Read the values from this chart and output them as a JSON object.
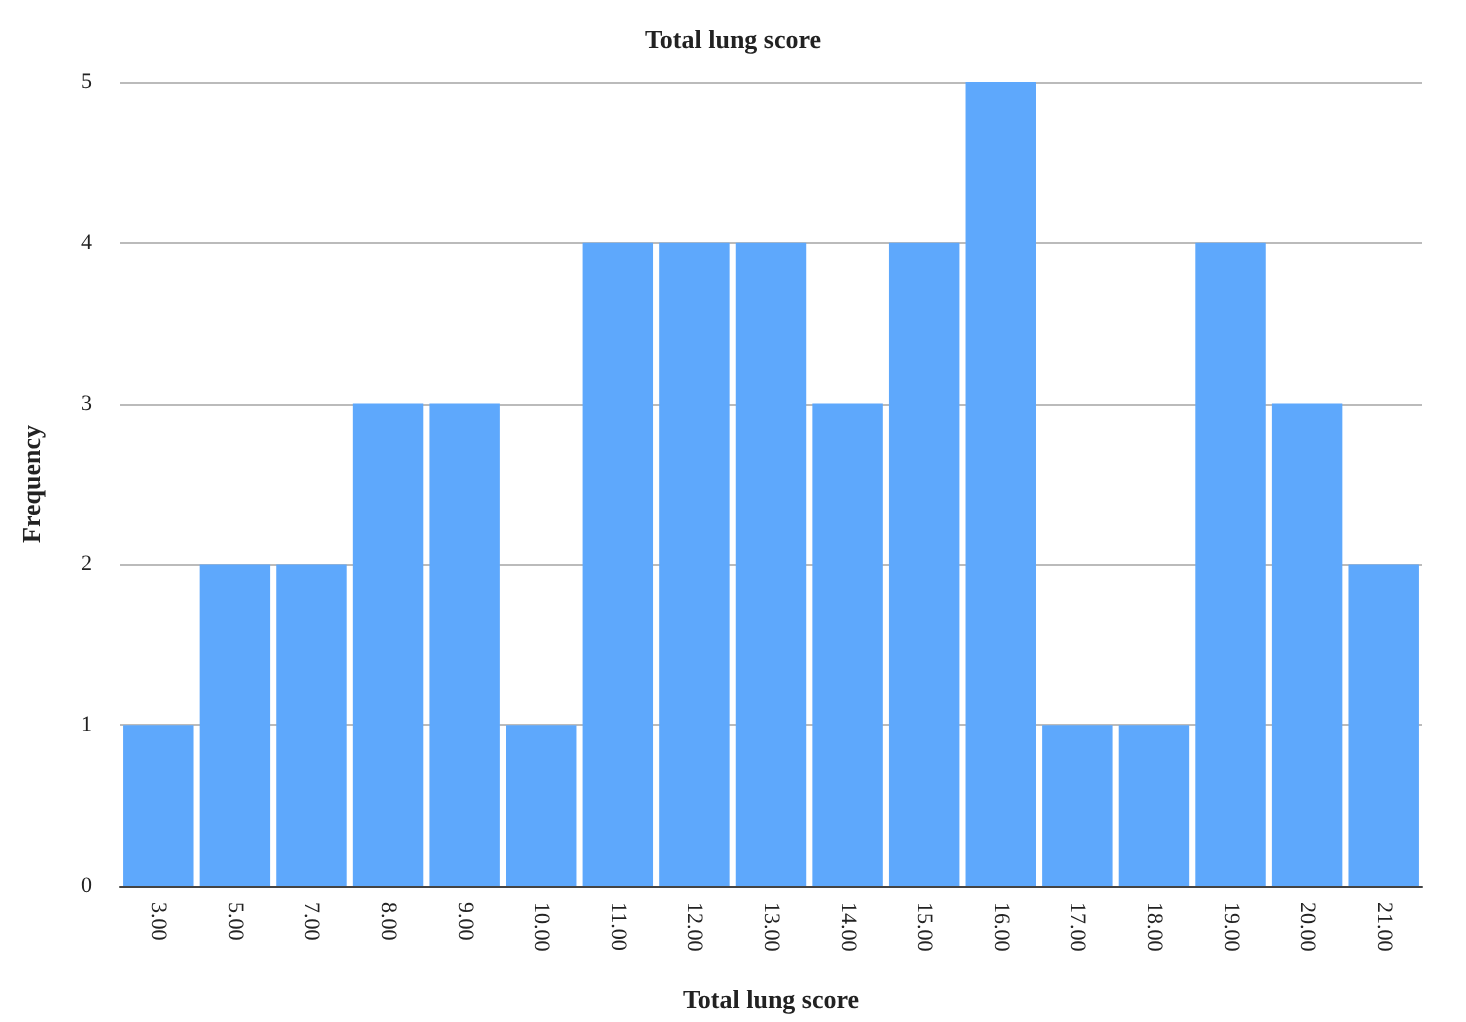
{
  "chart_data": {
    "type": "bar",
    "title": "Total lung score",
    "xlabel": "Total lung score",
    "ylabel": "Frequency",
    "categories": [
      "3.00",
      "5.00",
      "7.00",
      "8.00",
      "9.00",
      "10.00",
      "11.00",
      "12.00",
      "13.00",
      "14.00",
      "15.00",
      "16.00",
      "17.00",
      "18.00",
      "19.00",
      "20.00",
      "21.00"
    ],
    "values": [
      1,
      2,
      2,
      3,
      3,
      1,
      4,
      4,
      4,
      3,
      4,
      5,
      1,
      1,
      4,
      3,
      2
    ],
    "color": "#5ea8fc",
    "ylim": [
      0,
      5
    ],
    "yticks": [
      0,
      1,
      2,
      3,
      4,
      5
    ],
    "grid": "y"
  }
}
